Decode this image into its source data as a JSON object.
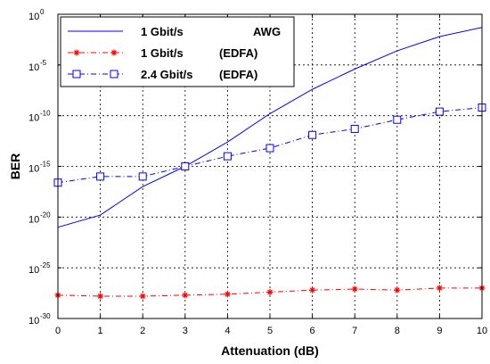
{
  "chart_data": {
    "type": "line",
    "xlabel": "Attenuation (dB)",
    "ylabel": "BER",
    "x": [
      0,
      1,
      2,
      3,
      4,
      5,
      6,
      7,
      8,
      9,
      10
    ],
    "xlim": [
      0,
      10
    ],
    "ylim_log10": [
      -30,
      0
    ],
    "y_scale": "log",
    "grid": true,
    "legend_position": "top-left",
    "x_ticks": [
      "0",
      "1",
      "2",
      "3",
      "4",
      "5",
      "6",
      "7",
      "8",
      "9",
      "10"
    ],
    "y_ticks": [
      {
        "base": "10",
        "exp": "0",
        "log10": 0
      },
      {
        "base": "10",
        "exp": "-5",
        "log10": -5
      },
      {
        "base": "10",
        "exp": "-10",
        "log10": -10
      },
      {
        "base": "10",
        "exp": "-15",
        "log10": -15
      },
      {
        "base": "10",
        "exp": "-20",
        "log10": -20
      },
      {
        "base": "10",
        "exp": "-25",
        "log10": -25
      },
      {
        "base": "10",
        "exp": "-30",
        "log10": -30
      }
    ],
    "series": [
      {
        "name": "1 Gbit/s",
        "name_suffix": "AWG",
        "color": "#0000ff",
        "line": "solid",
        "marker": "none",
        "log10_values": [
          -21.0,
          -19.8,
          -17.0,
          -15.0,
          -12.6,
          -9.8,
          -7.4,
          -5.4,
          -3.6,
          -2.2,
          -1.3
        ]
      },
      {
        "name": "1 Gbit/s",
        "name_suffix": "(EDFA)",
        "color": "#ff0000",
        "line": "dash-dot",
        "marker": "star",
        "log10_values": [
          -27.7,
          -27.8,
          -27.8,
          -27.7,
          -27.6,
          -27.4,
          -27.2,
          -27.1,
          -27.2,
          -27.0,
          -27.0
        ]
      },
      {
        "name": "2.4 Gbit/s",
        "name_suffix": "(EDFA)",
        "color": "#0000ff",
        "line": "dash-dot",
        "marker": "square",
        "log10_values": [
          -16.6,
          -16.0,
          -16.0,
          -15.0,
          -14.0,
          -13.2,
          -11.9,
          -11.3,
          -10.4,
          -9.6,
          -9.2
        ]
      }
    ]
  }
}
